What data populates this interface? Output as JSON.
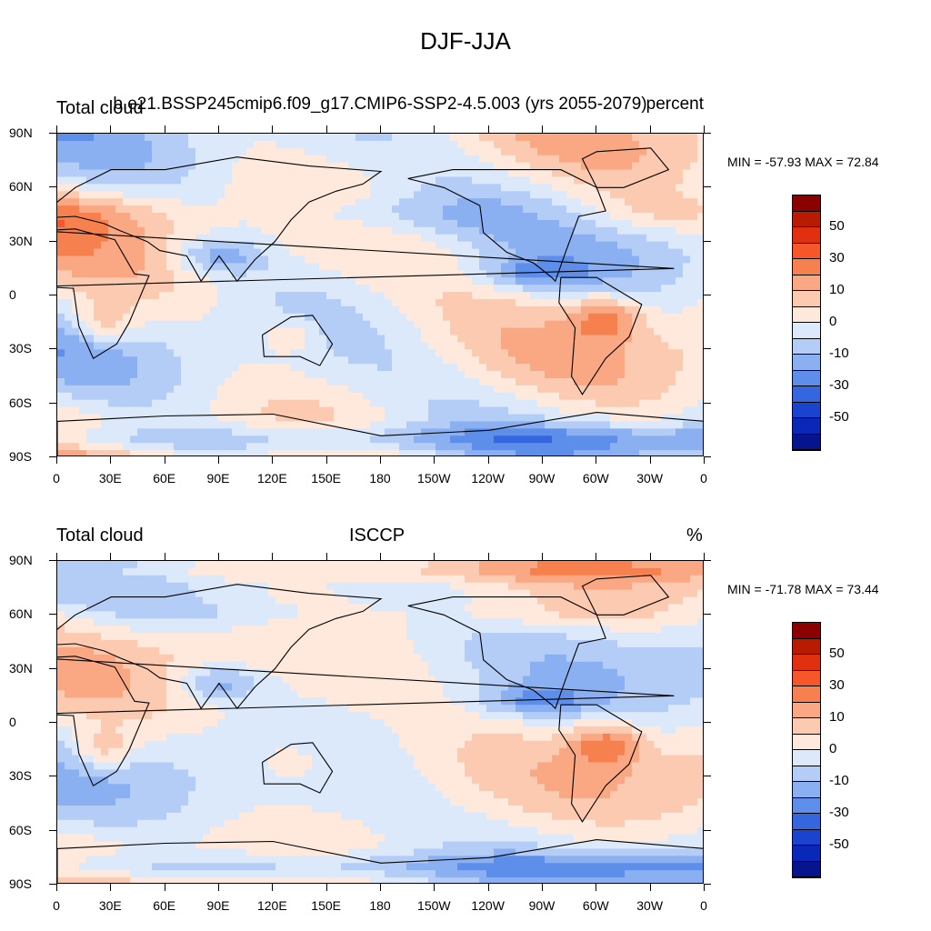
{
  "title": "DJF-JJA",
  "panels": [
    {
      "id": "top",
      "left_title": "Total cloud",
      "center_title": "b.e21.BSSP245cmip6.f09_g17.CMIP6-SSP2-4.5.003 (yrs 2055-2079)",
      "right_title": "percent",
      "min_max": "MIN = -57.93 MAX =  72.84"
    },
    {
      "id": "bottom",
      "left_title": "Total cloud",
      "center_title": "ISCCP",
      "right_title": "%",
      "min_max": "MIN = -71.78 MAX =  73.44"
    }
  ],
  "lat_labels": [
    "90N",
    "60N",
    "30N",
    "0",
    "30S",
    "60S",
    "90S"
  ],
  "lon_labels": [
    "0",
    "30E",
    "60E",
    "90E",
    "120E",
    "150E",
    "180",
    "150W",
    "120W",
    "90W",
    "60W",
    "30W",
    "0"
  ],
  "colorbar": {
    "labels": [
      "50",
      "30",
      "10",
      "0",
      "-10",
      "-30",
      "-50"
    ],
    "colors": [
      "#8b0000",
      "#b81b00",
      "#e03010",
      "#f5572a",
      "#f7804f",
      "#f9a883",
      "#fccab0",
      "#fee9dc",
      "#dce9fb",
      "#b4cdf7",
      "#8bb0f2",
      "#5c8eea",
      "#3566df",
      "#1a44d0",
      "#0a28b8",
      "#06148d"
    ]
  }
}
